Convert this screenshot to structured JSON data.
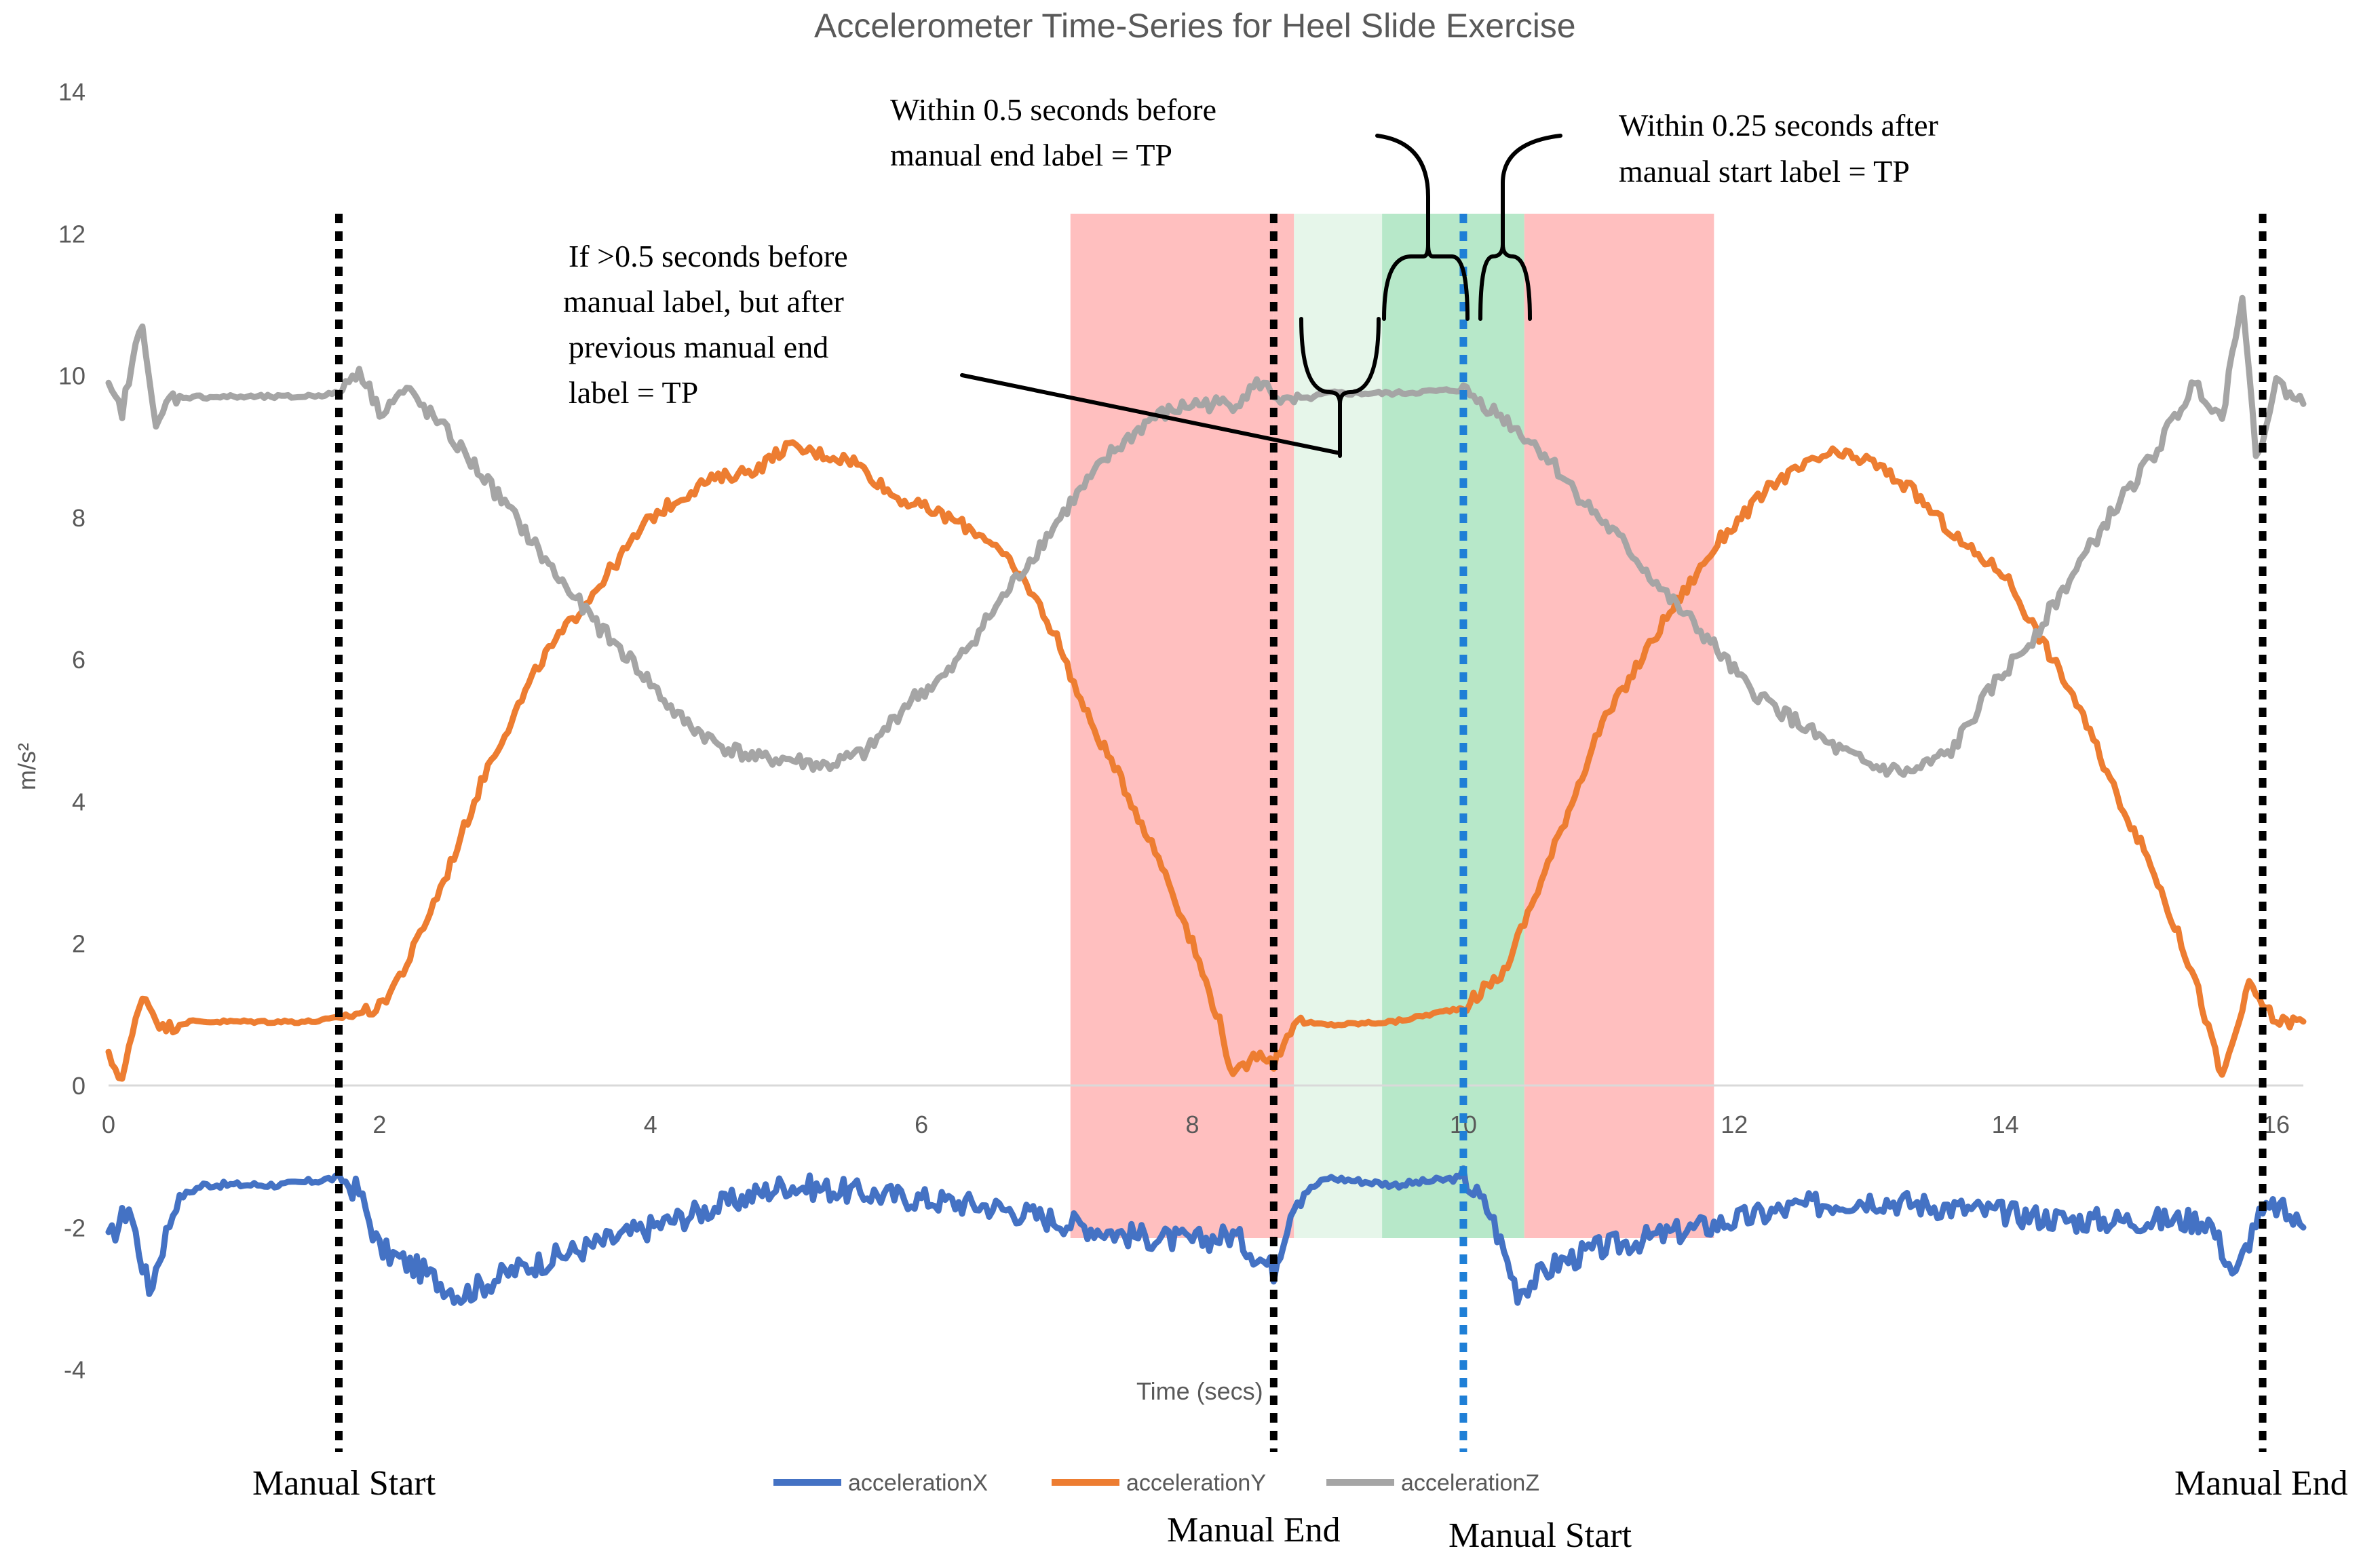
{
  "chart_data": {
    "type": "line",
    "title": "Accelerometer Time-Series for Heel Slide Exercise",
    "xlabel": "Time (secs)",
    "ylabel": "m/s²",
    "xlim": [
      0,
      16.2
    ],
    "ylim": [
      -5,
      14
    ],
    "x_ticks": [
      0,
      2,
      4,
      6,
      8,
      10,
      12,
      14,
      16
    ],
    "x_tick_labels": [
      "0",
      "2",
      "4",
      "6",
      "8",
      "10",
      "12",
      "14",
      "16"
    ],
    "y_ticks": [
      14,
      12,
      10,
      8,
      6,
      4,
      2,
      0,
      -2,
      -4
    ],
    "y_tick_labels": [
      "14",
      "12",
      "10",
      "8",
      "6",
      "4",
      "2",
      "0",
      "-2",
      "-4"
    ],
    "legend_position": "bottom-center",
    "series": [
      {
        "name": "accelerationX",
        "color": "#4472C4",
        "points": [
          [
            0,
            -2.2
          ],
          [
            0.15,
            -1.7
          ],
          [
            0.3,
            -2.9
          ],
          [
            0.5,
            -1.6
          ],
          [
            0.7,
            -1.4
          ],
          [
            1.0,
            -1.4
          ],
          [
            1.3,
            -1.4
          ],
          [
            1.7,
            -1.3
          ],
          [
            1.85,
            -1.5
          ],
          [
            2.0,
            -2.3
          ],
          [
            2.3,
            -2.6
          ],
          [
            2.6,
            -2.95
          ],
          [
            3.0,
            -2.6
          ],
          [
            3.5,
            -2.3
          ],
          [
            4.0,
            -2.0
          ],
          [
            4.5,
            -1.7
          ],
          [
            5.0,
            -1.4
          ],
          [
            5.5,
            -1.5
          ],
          [
            6.0,
            -1.6
          ],
          [
            6.5,
            -1.7
          ],
          [
            7.0,
            -1.9
          ],
          [
            7.5,
            -2.1
          ],
          [
            8.0,
            -2.2
          ],
          [
            8.3,
            -2.1
          ],
          [
            8.6,
            -2.6
          ],
          [
            8.75,
            -1.6
          ],
          [
            9.0,
            -1.3
          ],
          [
            9.5,
            -1.4
          ],
          [
            10.0,
            -1.3
          ],
          [
            10.2,
            -1.8
          ],
          [
            10.4,
            -2.9
          ],
          [
            10.7,
            -2.5
          ],
          [
            11.0,
            -2.3
          ],
          [
            11.5,
            -2.1
          ],
          [
            12.0,
            -1.9
          ],
          [
            12.5,
            -1.7
          ],
          [
            13.0,
            -1.6
          ],
          [
            13.5,
            -1.7
          ],
          [
            14.0,
            -1.8
          ],
          [
            14.5,
            -1.9
          ],
          [
            15.0,
            -1.9
          ],
          [
            15.5,
            -1.9
          ],
          [
            15.7,
            -2.7
          ],
          [
            15.85,
            -1.9
          ],
          [
            16.0,
            -1.7
          ],
          [
            16.2,
            -2.0
          ]
        ]
      },
      {
        "name": "accelerationY",
        "color": "#ED7D31",
        "points": [
          [
            0,
            0.4
          ],
          [
            0.1,
            0.1
          ],
          [
            0.25,
            1.3
          ],
          [
            0.4,
            0.8
          ],
          [
            0.6,
            0.9
          ],
          [
            1.0,
            0.9
          ],
          [
            1.5,
            0.9
          ],
          [
            1.7,
            0.95
          ],
          [
            2.0,
            1.1
          ],
          [
            2.2,
            1.7
          ],
          [
            2.5,
            3.0
          ],
          [
            2.8,
            4.5
          ],
          [
            3.2,
            6.0
          ],
          [
            3.6,
            7.0
          ],
          [
            4.0,
            8.0
          ],
          [
            4.4,
            8.5
          ],
          [
            4.8,
            8.7
          ],
          [
            5.0,
            9.0
          ],
          [
            5.5,
            8.8
          ],
          [
            5.8,
            8.3
          ],
          [
            6.2,
            8.0
          ],
          [
            6.5,
            7.7
          ],
          [
            6.8,
            7.0
          ],
          [
            7.0,
            6.3
          ],
          [
            7.2,
            5.3
          ],
          [
            7.5,
            4.2
          ],
          [
            7.8,
            3.0
          ],
          [
            8.0,
            2.0
          ],
          [
            8.2,
            0.9
          ],
          [
            8.3,
            0.1
          ],
          [
            8.5,
            0.5
          ],
          [
            8.6,
            0.3
          ],
          [
            8.75,
            0.9
          ],
          [
            9.0,
            0.85
          ],
          [
            9.5,
            0.9
          ],
          [
            10.0,
            1.1
          ],
          [
            10.3,
            1.6
          ],
          [
            10.6,
            3.0
          ],
          [
            11.0,
            5.0
          ],
          [
            11.5,
            6.6
          ],
          [
            11.9,
            7.7
          ],
          [
            12.3,
            8.5
          ],
          [
            12.7,
            8.9
          ],
          [
            13.0,
            8.8
          ],
          [
            13.3,
            8.4
          ],
          [
            13.7,
            7.6
          ],
          [
            14.0,
            7.2
          ],
          [
            14.2,
            6.5
          ],
          [
            14.5,
            5.5
          ],
          [
            14.8,
            4.2
          ],
          [
            15.1,
            3.0
          ],
          [
            15.4,
            1.5
          ],
          [
            15.6,
            0.1
          ],
          [
            15.8,
            1.4
          ],
          [
            16.0,
            0.9
          ],
          [
            16.2,
            0.9
          ]
        ]
      },
      {
        "name": "accelerationZ",
        "color": "#A5A5A5",
        "points": [
          [
            0,
            9.8
          ],
          [
            0.1,
            9.5
          ],
          [
            0.25,
            10.8
          ],
          [
            0.35,
            9.2
          ],
          [
            0.45,
            9.7
          ],
          [
            0.7,
            9.7
          ],
          [
            1.0,
            9.7
          ],
          [
            1.4,
            9.7
          ],
          [
            1.7,
            9.75
          ],
          [
            1.85,
            10.1
          ],
          [
            2.0,
            9.5
          ],
          [
            2.2,
            9.8
          ],
          [
            2.5,
            9.2
          ],
          [
            2.8,
            8.5
          ],
          [
            3.0,
            8.0
          ],
          [
            3.3,
            7.2
          ],
          [
            3.6,
            6.5
          ],
          [
            3.9,
            5.9
          ],
          [
            4.2,
            5.2
          ],
          [
            4.5,
            4.8
          ],
          [
            4.8,
            4.6
          ],
          [
            5.0,
            4.6
          ],
          [
            5.3,
            4.5
          ],
          [
            5.6,
            4.7
          ],
          [
            5.9,
            5.4
          ],
          [
            6.2,
            5.8
          ],
          [
            6.5,
            6.6
          ],
          [
            6.8,
            7.4
          ],
          [
            7.1,
            8.2
          ],
          [
            7.4,
            8.9
          ],
          [
            7.7,
            9.4
          ],
          [
            8.0,
            9.6
          ],
          [
            8.3,
            9.6
          ],
          [
            8.5,
            9.9
          ],
          [
            8.7,
            9.6
          ],
          [
            9.0,
            9.75
          ],
          [
            9.5,
            9.75
          ],
          [
            10.0,
            9.8
          ],
          [
            10.3,
            9.4
          ],
          [
            10.6,
            8.9
          ],
          [
            10.9,
            8.2
          ],
          [
            11.2,
            7.6
          ],
          [
            11.5,
            6.9
          ],
          [
            11.8,
            6.3
          ],
          [
            12.1,
            5.6
          ],
          [
            12.4,
            5.2
          ],
          [
            12.7,
            4.8
          ],
          [
            13.0,
            4.5
          ],
          [
            13.3,
            4.4
          ],
          [
            13.6,
            4.7
          ],
          [
            13.9,
            5.6
          ],
          [
            14.2,
            6.3
          ],
          [
            14.5,
            7.2
          ],
          [
            14.8,
            8.1
          ],
          [
            15.1,
            8.9
          ],
          [
            15.4,
            9.9
          ],
          [
            15.6,
            9.4
          ],
          [
            15.75,
            11.2
          ],
          [
            15.85,
            8.8
          ],
          [
            16.0,
            9.9
          ],
          [
            16.2,
            9.6
          ]
        ]
      }
    ],
    "vertical_markers": [
      {
        "x": 1.7,
        "label": "Manual Start",
        "color": "#000000"
      },
      {
        "x": 8.6,
        "label": "Manual End",
        "color": "#000000"
      },
      {
        "x": 10.0,
        "label": "Manual Start",
        "color": "#1f7fd6"
      },
      {
        "x": 15.9,
        "label": "Manual End",
        "color": "#000000"
      }
    ],
    "shaded_regions": [
      {
        "x_start": 7.1,
        "x_end": 8.6,
        "color": "#ffbfbf",
        "meaning": "red"
      },
      {
        "x_start": 8.6,
        "x_end": 8.75,
        "color": "#ffbfbf",
        "meaning": "red"
      },
      {
        "x_start": 8.75,
        "x_end": 9.4,
        "color": "#e6f6ea",
        "meaning": "light green"
      },
      {
        "x_start": 9.4,
        "x_end": 10.45,
        "color": "#b7e8c9",
        "meaning": "green"
      },
      {
        "x_start": 10.45,
        "x_end": 11.85,
        "color": "#ffbfbf",
        "meaning": "red"
      }
    ],
    "annotations": [
      "If >0.5 seconds before",
      "manual label, but after",
      "previous manual end",
      "label = TP",
      "Within 0.5 seconds before",
      "manual end label = TP",
      "Within 0.25 seconds after",
      "manual start label = TP"
    ]
  }
}
